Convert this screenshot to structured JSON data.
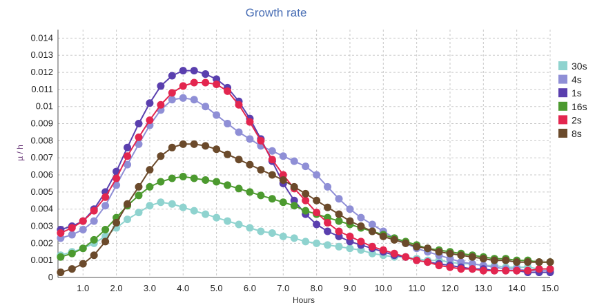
{
  "chart_data": {
    "type": "line",
    "title": "Growth rate",
    "xlabel": "Hours",
    "ylabel": "µ / h",
    "xlim": [
      0.25,
      15.0
    ],
    "ylim": [
      0,
      0.0145
    ],
    "x_ticks": [
      "1.0",
      "2.0",
      "3.0",
      "4.0",
      "5.0",
      "6.0",
      "7.0",
      "8.0",
      "9.0",
      "10.0",
      "11.0",
      "12.0",
      "13.0",
      "14.0",
      "15.0"
    ],
    "y_ticks": [
      "0",
      "0.001",
      "0.002",
      "0.003",
      "0.004",
      "0.005",
      "0.006",
      "0.007",
      "0.008",
      "0.009",
      "0.01",
      "0.011",
      "0.012",
      "0.013",
      "0.014"
    ],
    "grid": true,
    "legend_position": "right",
    "x": [
      0.33,
      0.67,
      1.0,
      1.33,
      1.67,
      2.0,
      2.33,
      2.67,
      3.0,
      3.33,
      3.67,
      4.0,
      4.33,
      4.67,
      5.0,
      5.33,
      5.67,
      6.0,
      6.33,
      6.67,
      7.0,
      7.33,
      7.67,
      8.0,
      8.33,
      8.67,
      9.0,
      9.33,
      9.67,
      10.0,
      10.33,
      10.67,
      11.0,
      11.33,
      11.67,
      12.0,
      12.33,
      12.67,
      13.0,
      13.33,
      13.67,
      14.0,
      14.33,
      14.67,
      15.0
    ],
    "series": [
      {
        "name": "30s",
        "color": "#8fd3cf",
        "values": [
          0.0013,
          0.0015,
          0.0017,
          0.002,
          0.0024,
          0.0029,
          0.0034,
          0.0038,
          0.0042,
          0.0044,
          0.0043,
          0.0041,
          0.0039,
          0.0037,
          0.0035,
          0.0033,
          0.0031,
          0.0029,
          0.0027,
          0.0026,
          0.0024,
          0.0023,
          0.0021,
          0.002,
          0.0019,
          0.0018,
          0.0017,
          0.0016,
          0.0014,
          0.0013,
          0.0012,
          0.0012,
          0.0011,
          0.001,
          0.001,
          0.0009,
          0.0008,
          0.0008,
          0.0007,
          0.0007,
          0.0006,
          0.0006,
          0.0006,
          0.0005,
          0.0005
        ]
      },
      {
        "name": "4s",
        "color": "#8f8fd6",
        "values": [
          0.0023,
          0.0025,
          0.0028,
          0.0033,
          0.0042,
          0.0054,
          0.0066,
          0.0078,
          0.0089,
          0.0098,
          0.0104,
          0.0105,
          0.0104,
          0.01,
          0.0095,
          0.009,
          0.0085,
          0.0081,
          0.0077,
          0.0074,
          0.0071,
          0.0068,
          0.0065,
          0.006,
          0.0053,
          0.0046,
          0.004,
          0.0035,
          0.0031,
          0.0027,
          0.0023,
          0.002,
          0.0017,
          0.0015,
          0.0013,
          0.0011,
          0.0009,
          0.0008,
          0.0007,
          0.0006,
          0.0005,
          0.0005,
          0.0004,
          0.0004,
          0.0004
        ]
      },
      {
        "name": "1s",
        "color": "#5a3fae",
        "values": [
          0.0028,
          0.003,
          0.0033,
          0.004,
          0.005,
          0.0062,
          0.0076,
          0.009,
          0.0102,
          0.0112,
          0.0118,
          0.0121,
          0.0121,
          0.0119,
          0.0116,
          0.0111,
          0.0103,
          0.0093,
          0.0081,
          0.0068,
          0.0055,
          0.0045,
          0.0037,
          0.0031,
          0.0027,
          0.0024,
          0.0021,
          0.0019,
          0.0017,
          0.0015,
          0.0013,
          0.0012,
          0.001,
          0.0009,
          0.0008,
          0.0007,
          0.0006,
          0.0005,
          0.0005,
          0.0004,
          0.0004,
          0.0004,
          0.0003,
          0.0003,
          0.0003
        ]
      },
      {
        "name": "16s",
        "color": "#4c9a2f",
        "values": [
          0.0012,
          0.0014,
          0.0017,
          0.0022,
          0.0028,
          0.0035,
          0.0042,
          0.0048,
          0.0053,
          0.0056,
          0.0058,
          0.0059,
          0.0058,
          0.0057,
          0.0056,
          0.0054,
          0.0052,
          0.005,
          0.0048,
          0.0046,
          0.0044,
          0.0042,
          0.0039,
          0.0037,
          0.0035,
          0.0033,
          0.0031,
          0.0029,
          0.0027,
          0.0025,
          0.0023,
          0.0021,
          0.0019,
          0.0017,
          0.0016,
          0.0015,
          0.0014,
          0.0013,
          0.0012,
          0.0011,
          0.0011,
          0.001,
          0.001,
          0.0009,
          0.0009
        ]
      },
      {
        "name": "2s",
        "color": "#e3264f",
        "values": [
          0.0026,
          0.0029,
          0.0033,
          0.0039,
          0.0047,
          0.0058,
          0.0071,
          0.0082,
          0.0092,
          0.0101,
          0.0108,
          0.0112,
          0.0114,
          0.0114,
          0.0113,
          0.0109,
          0.0101,
          0.0091,
          0.008,
          0.0069,
          0.006,
          0.0052,
          0.0045,
          0.0038,
          0.0032,
          0.0027,
          0.0024,
          0.0021,
          0.0018,
          0.0016,
          0.0014,
          0.0012,
          0.001,
          0.0009,
          0.0007,
          0.0006,
          0.0005,
          0.0005,
          0.0004,
          0.0004,
          0.0004,
          0.0004,
          0.0004,
          0.0005,
          0.0005
        ]
      },
      {
        "name": "8s",
        "color": "#6b4a2b",
        "values": [
          0.0003,
          0.0005,
          0.0008,
          0.0013,
          0.0021,
          0.0032,
          0.0043,
          0.0053,
          0.0063,
          0.0071,
          0.0076,
          0.0078,
          0.0078,
          0.0077,
          0.0075,
          0.0072,
          0.0069,
          0.0066,
          0.0063,
          0.006,
          0.0057,
          0.0053,
          0.0049,
          0.0045,
          0.0041,
          0.0037,
          0.0033,
          0.003,
          0.0027,
          0.0024,
          0.0022,
          0.002,
          0.0018,
          0.0017,
          0.0015,
          0.0014,
          0.0013,
          0.0012,
          0.0011,
          0.001,
          0.001,
          0.0009,
          0.0009,
          0.0009,
          0.0009
        ]
      }
    ]
  }
}
